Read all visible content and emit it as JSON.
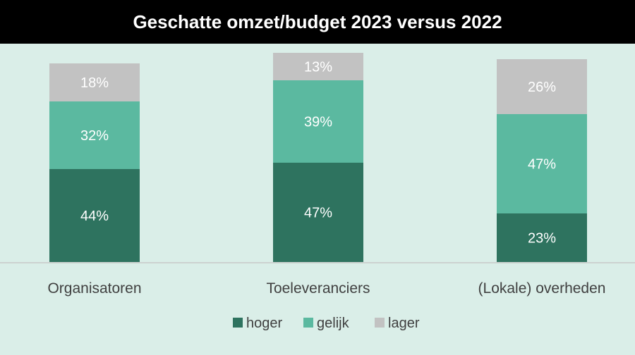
{
  "chart_data": {
    "type": "bar",
    "stacked": true,
    "title": "Geschatte omzet/budget 2023 versus 2022",
    "categories": [
      "Organisatoren",
      "Toeleveranciers",
      "(Lokale) overheden"
    ],
    "series": [
      {
        "name": "hoger",
        "values": [
          44,
          47,
          23
        ],
        "labels": [
          "44%",
          "47%",
          "23%"
        ],
        "color": "#2e735f"
      },
      {
        "name": "gelijk",
        "values": [
          32,
          39,
          47
        ],
        "labels": [
          "32%",
          "39%",
          "47%"
        ],
        "color": "#5bb9a0"
      },
      {
        "name": "lager",
        "values": [
          18,
          13,
          26
        ],
        "labels": [
          "18%",
          "13%",
          "26%"
        ],
        "color": "#c2c2c2"
      }
    ],
    "ylim": [
      0,
      100
    ],
    "grid": false,
    "legend": "bottom",
    "colors": {
      "background": "#daeee8",
      "title_bar": "#000000",
      "title_text": "#ffffff",
      "axis_line": "#c8c8c8",
      "text": "#404040"
    }
  }
}
